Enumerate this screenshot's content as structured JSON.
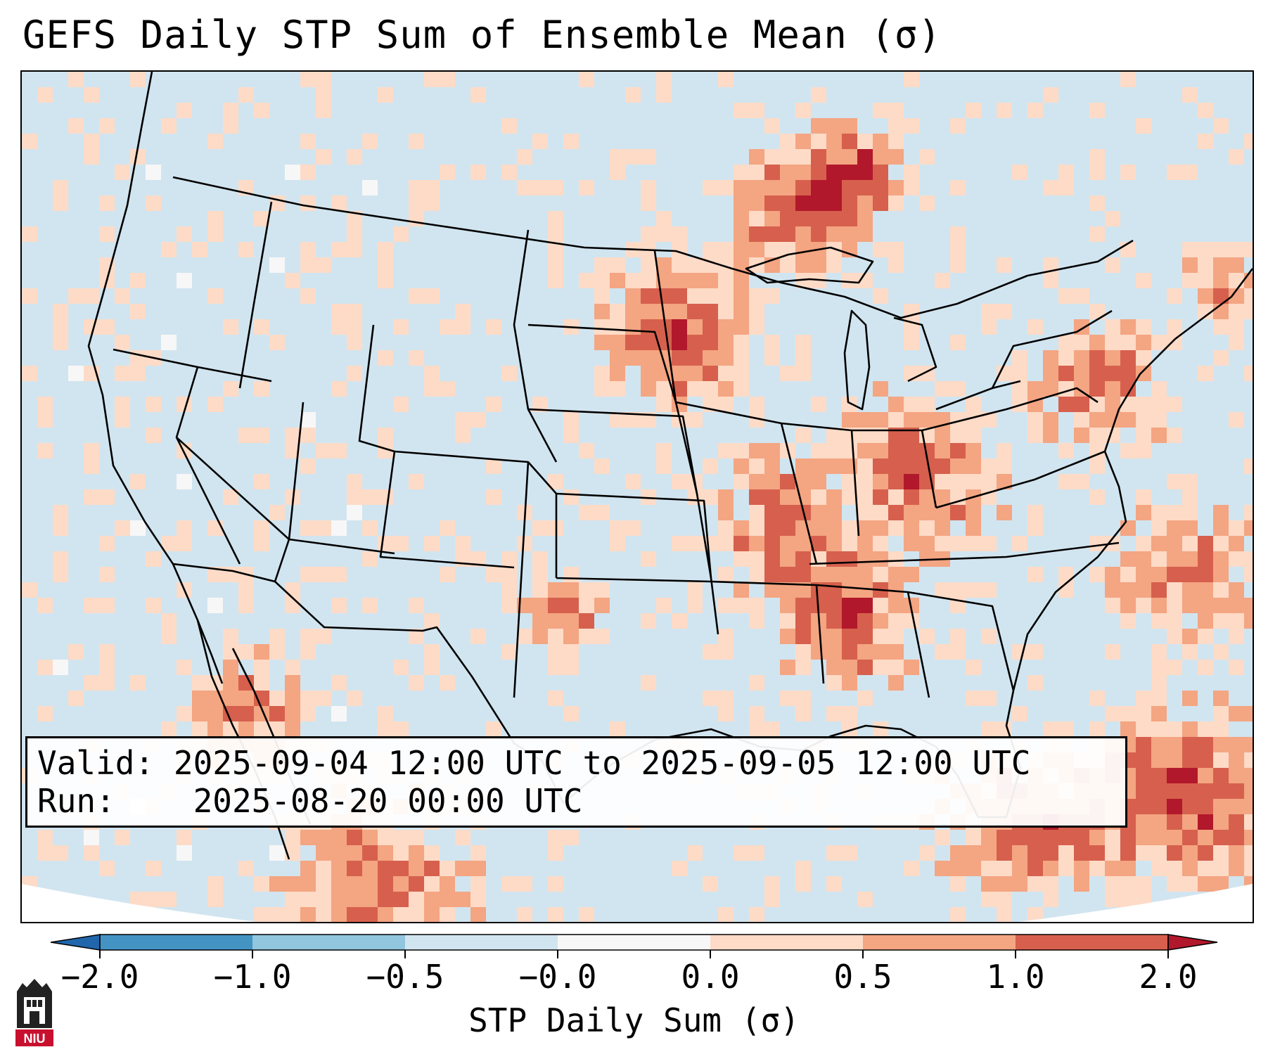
{
  "title": "GEFS Daily STP Sum of Ensemble Mean (σ)",
  "info": {
    "valid_prefix": "Valid:",
    "valid_value": "2025-09-04 12:00 UTC to 2025-09-05 12:00 UTC",
    "run_prefix": "Run:",
    "run_value": "2025-08-20 00:00 UTC"
  },
  "colorbar": {
    "label": "STP Daily Sum (σ)",
    "tick_labels": [
      "−2.0",
      "−1.0",
      "−0.5",
      "−0.0",
      "0.0",
      "0.5",
      "1.0",
      "2.0"
    ],
    "bins": [
      {
        "range": "< -2.0",
        "color": "#2166ac"
      },
      {
        "range": "-2.0 to -1.0",
        "color": "#4393c3"
      },
      {
        "range": "-1.0 to -0.5",
        "color": "#92c5de"
      },
      {
        "range": "-0.5 to -0.0",
        "color": "#d1e5f0"
      },
      {
        "range": "-0.0 to 0.0",
        "color": "#f7f7f7"
      },
      {
        "range": "0.0 to 0.5",
        "color": "#fddbc7"
      },
      {
        "range": "0.5 to 1.0",
        "color": "#f4a582"
      },
      {
        "range": "1.0 to 2.0",
        "color": "#d6604d"
      },
      {
        "range": "> 2.0",
        "color": "#b2182b"
      }
    ],
    "extend": "both"
  },
  "map": {
    "projection": "Lambert Conformal",
    "region": "CONUS",
    "background_color": "#d1e5f0",
    "highlight_regions": [
      "Upper Midwest / Minnesota",
      "Ohio Valley",
      "Northeast coast",
      "Western Atlantic / Bahamas",
      "Southern Texas / Mexico border"
    ]
  },
  "logo": {
    "text": "NIU",
    "color": "#c8102e"
  }
}
